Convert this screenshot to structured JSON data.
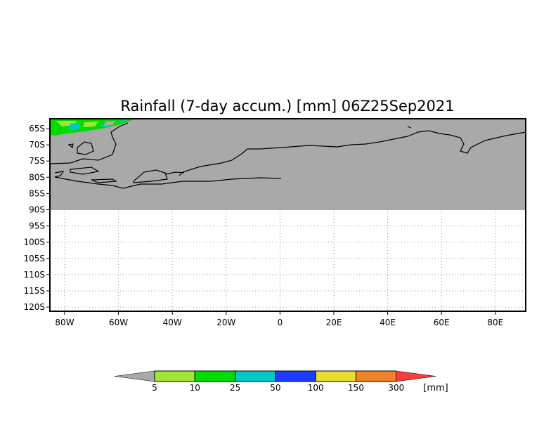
{
  "title": "Rainfall (7-day accum.) [mm] 06Z25Sep2021",
  "lat_labels": [
    "65S",
    "70S",
    "75S",
    "80S",
    "85S",
    "90S",
    "95S",
    "100S",
    "105S",
    "110S",
    "115S",
    "120S"
  ],
  "lon_labels": [
    "80W",
    "60W",
    "40W",
    "20W",
    "0",
    "20E",
    "40E",
    "60E",
    "80E"
  ],
  "legend": {
    "unit": "[mm]",
    "thresholds": [
      "5",
      "10",
      "25",
      "50",
      "100",
      "150",
      "300"
    ],
    "colors": [
      "#a9a9a9",
      "#a0e632",
      "#00dc00",
      "#00c8c8",
      "#1e3cff",
      "#e6dc32",
      "#f08228",
      "#fa3c3c"
    ]
  },
  "colors": {
    "land_nodata": "#a9a9a9",
    "coast": "#000000"
  }
}
